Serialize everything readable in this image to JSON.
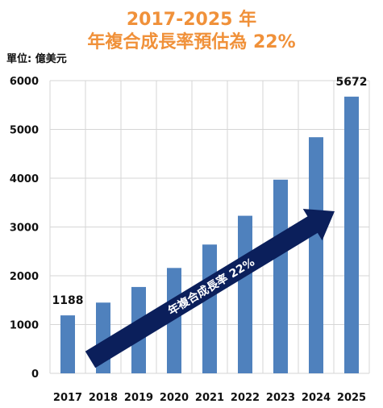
{
  "header": {
    "title_line1": "2017-2025 年",
    "title_line2": "年複合成長率預估為 22%",
    "unit_label": "單位: 億美元"
  },
  "arrow_label": "年複合成長率 22%",
  "colors": {
    "title": "#f0913a",
    "bar": "#4f81bd",
    "arrow": "#0b1f5b",
    "grid": "#d6d6d6"
  },
  "chart_data": {
    "type": "bar",
    "categories": [
      "2017",
      "2018",
      "2019",
      "2020",
      "2021",
      "2022",
      "2023",
      "2024",
      "2025"
    ],
    "values": [
      1188,
      1450,
      1770,
      2160,
      2640,
      3230,
      3970,
      4840,
      5672
    ],
    "data_labels": [
      {
        "category": "2017",
        "text": "1188"
      },
      {
        "category": "2025",
        "text": "5672"
      }
    ],
    "yticks": [
      0,
      1000,
      2000,
      3000,
      4000,
      5000,
      6000
    ],
    "ylim": [
      0,
      6000
    ],
    "grid": true
  }
}
